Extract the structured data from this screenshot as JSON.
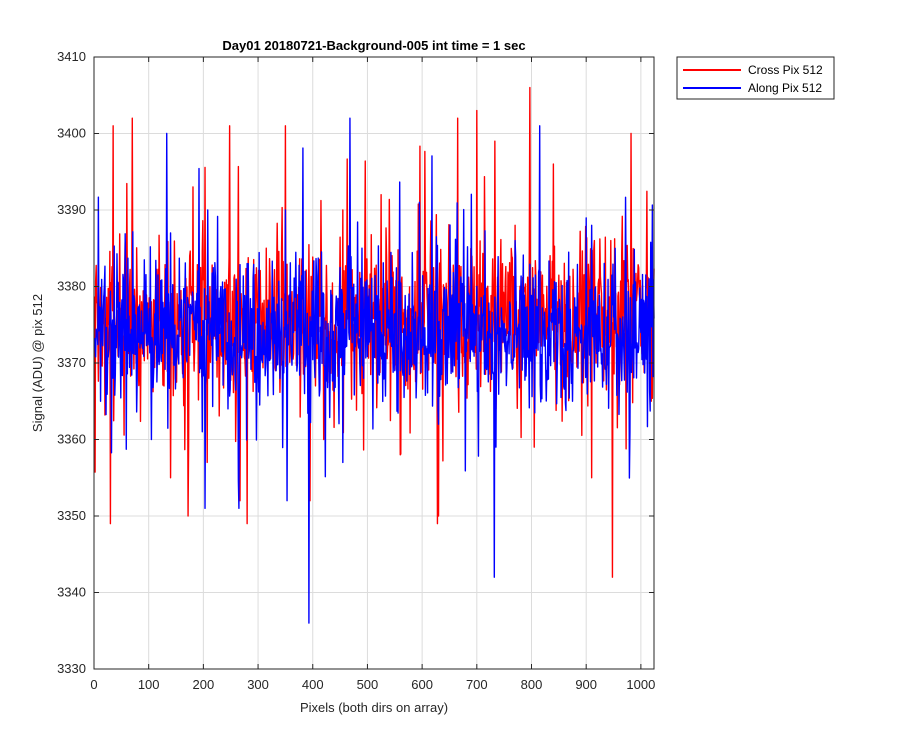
{
  "chart_data": {
    "type": "line",
    "title": "Day01 20180721-Background-005 int time = 1 sec",
    "xlabel": "Pixels (both dirs on array)",
    "ylabel": "Signal (ADU) @ pix 512",
    "xlim": [
      0,
      1024
    ],
    "ylim": [
      3330,
      3410
    ],
    "x_ticks": [
      0,
      100,
      200,
      300,
      400,
      500,
      600,
      700,
      800,
      900,
      1000
    ],
    "y_ticks": [
      3330,
      3340,
      3350,
      3360,
      3370,
      3380,
      3390,
      3400,
      3410
    ],
    "x_tick_labels": [
      "0",
      "100",
      "200",
      "300",
      "400",
      "500",
      "600",
      "700",
      "800",
      "900",
      "1000"
    ],
    "y_tick_labels": [
      "3330",
      "3340",
      "3350",
      "3360",
      "3370",
      "3380",
      "3390",
      "3400",
      "3410"
    ],
    "grid": true,
    "legend_position": "outside-top-right",
    "x_range": [
      1,
      1024
    ],
    "series": [
      {
        "name": "Cross Pix 512",
        "color": "#ff0000",
        "sample_values": [
          3365,
          3351,
          3362,
          3378,
          3355,
          3384,
          3368,
          3371,
          3349,
          3385,
          3401,
          3372,
          3360,
          3390,
          3366,
          3392,
          3358,
          3376,
          3350,
          3402,
          3381,
          3364,
          3388,
          3359,
          3396,
          3370,
          3355,
          3386,
          3373,
          3380
        ],
        "extremes": [
          {
            "x": 30,
            "y": 3349
          },
          {
            "x": 35,
            "y": 3401
          },
          {
            "x": 70,
            "y": 3402
          },
          {
            "x": 172,
            "y": 3350
          },
          {
            "x": 248,
            "y": 3401
          },
          {
            "x": 628,
            "y": 3349
          },
          {
            "x": 700,
            "y": 3403
          },
          {
            "x": 797,
            "y": 3406
          },
          {
            "x": 948,
            "y": 3342
          },
          {
            "x": 982,
            "y": 3400
          }
        ]
      },
      {
        "name": "Along Pix 512",
        "color": "#0000ff",
        "sample_values": [
          3382,
          3368,
          3375,
          3360,
          3387,
          3371,
          3378,
          3364,
          3383,
          3372,
          3390,
          3366,
          3379,
          3357,
          3385,
          3374,
          3369,
          3391,
          3362,
          3376,
          3380,
          3359,
          3386,
          3370,
          3377,
          3365,
          3388,
          3373,
          3361,
          3381
        ],
        "extremes": [
          {
            "x": 133,
            "y": 3400
          },
          {
            "x": 203,
            "y": 3351
          },
          {
            "x": 265,
            "y": 3351
          },
          {
            "x": 393,
            "y": 3336
          },
          {
            "x": 468,
            "y": 3402
          },
          {
            "x": 732,
            "y": 3342
          },
          {
            "x": 815,
            "y": 3401
          }
        ]
      }
    ]
  }
}
